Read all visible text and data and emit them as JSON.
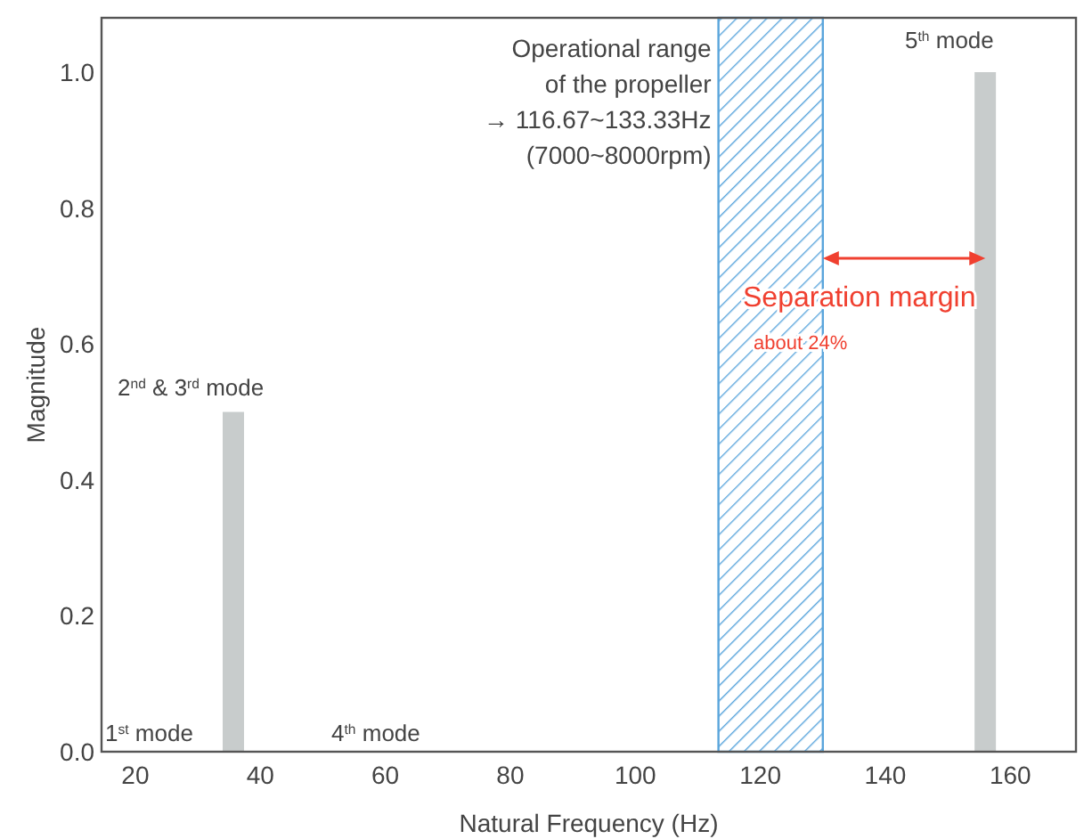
{
  "chart_data": {
    "type": "bar",
    "xlabel": "Natural Frequency (Hz)",
    "ylabel": "Magnitude",
    "x": [
      35.7,
      156
    ],
    "values": [
      0.5,
      1.0
    ],
    "color": "#c8cccc",
    "xlim": [
      14.6,
      170.5
    ],
    "xticks": [
      20,
      40,
      60,
      80,
      100,
      120,
      140,
      160
    ],
    "ylim": [
      0,
      1.08
    ],
    "yticks": [
      {
        "value": 0,
        "label": "0.0"
      },
      {
        "value": 0.2,
        "label": "0.2"
      },
      {
        "value": 0.4,
        "label": "0.4"
      },
      {
        "value": 0.6,
        "label": "0.6"
      },
      {
        "value": 0.8,
        "label": "0.8"
      },
      {
        "value": 1,
        "label": "1.0"
      }
    ],
    "bands": [
      {
        "axis": "x",
        "from": 113.3,
        "to": 130,
        "label": "Operational range\nof the propeller\n→ 116.67~133.33Hz\n(7000~8000rpm)",
        "color": "#5aa5dc"
      }
    ],
    "annotations": [
      "1$^{st}$ mode",
      "2$^{nd}$ & 3$^{rd}$ mode",
      "4$^{th}$ mode",
      "5$^{th}$ mode",
      "Separation margin",
      "about 24%"
    ]
  }
}
